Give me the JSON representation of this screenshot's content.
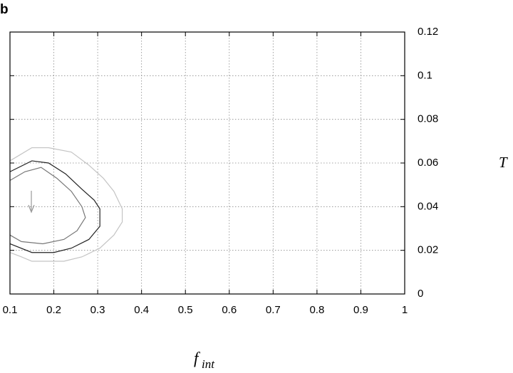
{
  "panel_label": "b",
  "chart_data": {
    "type": "line",
    "x_label": "f",
    "x_label_sub": "int",
    "y_label": "T",
    "xlim": [
      0.1,
      1
    ],
    "ylim": [
      0,
      0.12
    ],
    "xticks": [
      0.1,
      0.2,
      0.3,
      0.4,
      0.5,
      0.6,
      0.7,
      0.8,
      0.9,
      1
    ],
    "yticks": [
      0,
      0.02,
      0.04,
      0.06,
      0.08,
      0.1,
      0.12
    ],
    "grid": true,
    "series": [
      {
        "color": "#c4c4c4",
        "x": [
          0.1,
          0.15,
          0.188,
          0.24,
          0.28,
          0.313,
          0.337,
          0.356,
          0.356,
          0.337,
          0.305,
          0.264,
          0.223,
          0.15,
          0.126,
          0.1
        ],
        "values": [
          0.061,
          0.067,
          0.067,
          0.065,
          0.059,
          0.053,
          0.047,
          0.039,
          0.033,
          0.027,
          0.021,
          0.017,
          0.015,
          0.015,
          0.017,
          0.019
        ]
      },
      {
        "color": "#222222",
        "x": [
          0.1,
          0.15,
          0.188,
          0.227,
          0.264,
          0.292,
          0.305,
          0.305,
          0.28,
          0.24,
          0.2,
          0.15,
          0.1
        ],
        "values": [
          0.056,
          0.061,
          0.06,
          0.055,
          0.048,
          0.043,
          0.039,
          0.031,
          0.025,
          0.021,
          0.019,
          0.019,
          0.023
        ]
      },
      {
        "color": "#777777",
        "x": [
          0.1,
          0.134,
          0.171,
          0.207,
          0.24,
          0.264,
          0.272,
          0.253,
          0.223,
          0.175,
          0.126,
          0.1
        ],
        "values": [
          0.052,
          0.056,
          0.058,
          0.053,
          0.047,
          0.04,
          0.035,
          0.029,
          0.025,
          0.023,
          0.024,
          0.027
        ]
      }
    ]
  }
}
